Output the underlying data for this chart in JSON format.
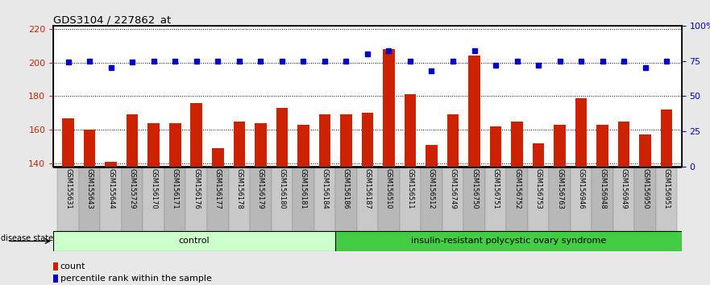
{
  "title": "GDS3104 / 227862_at",
  "samples": [
    "GSM155631",
    "GSM155643",
    "GSM155644",
    "GSM155729",
    "GSM156170",
    "GSM156171",
    "GSM156176",
    "GSM156177",
    "GSM156178",
    "GSM156179",
    "GSM156180",
    "GSM156181",
    "GSM156184",
    "GSM156186",
    "GSM156187",
    "GSM156510",
    "GSM156511",
    "GSM156512",
    "GSM156749",
    "GSM156750",
    "GSM156751",
    "GSM156752",
    "GSM156753",
    "GSM156763",
    "GSM156946",
    "GSM156948",
    "GSM156949",
    "GSM156950",
    "GSM156951"
  ],
  "bar_values": [
    167,
    160,
    141,
    169,
    164,
    164,
    176,
    149,
    165,
    164,
    173,
    163,
    169,
    169,
    170,
    208,
    181,
    151,
    169,
    204,
    162,
    165,
    152,
    163,
    179,
    163,
    165,
    157,
    172
  ],
  "percentile_values": [
    74,
    75,
    70,
    74,
    75,
    75,
    75,
    75,
    75,
    75,
    75,
    75,
    75,
    75,
    80,
    82,
    75,
    68,
    75,
    82,
    72,
    75,
    72,
    75,
    75,
    75,
    75,
    70,
    75
  ],
  "control_count": 13,
  "bar_color": "#cc2200",
  "dot_color": "#0000cc",
  "ylim_left": [
    138,
    222
  ],
  "ylim_right": [
    0,
    100
  ],
  "yticks_left": [
    140,
    160,
    180,
    200,
    220
  ],
  "yticks_right": [
    0,
    25,
    50,
    75,
    100
  ],
  "control_label": "control",
  "disease_label": "insulin-resistant polycystic ovary syndrome",
  "legend_count": "count",
  "legend_percentile": "percentile rank within the sample",
  "disease_state_label": "disease state",
  "control_color": "#ccffcc",
  "disease_color": "#44cc44",
  "fig_bg": "#e8e8e8",
  "plot_bg": "#ffffff",
  "label_bg": "#c8c8c8"
}
